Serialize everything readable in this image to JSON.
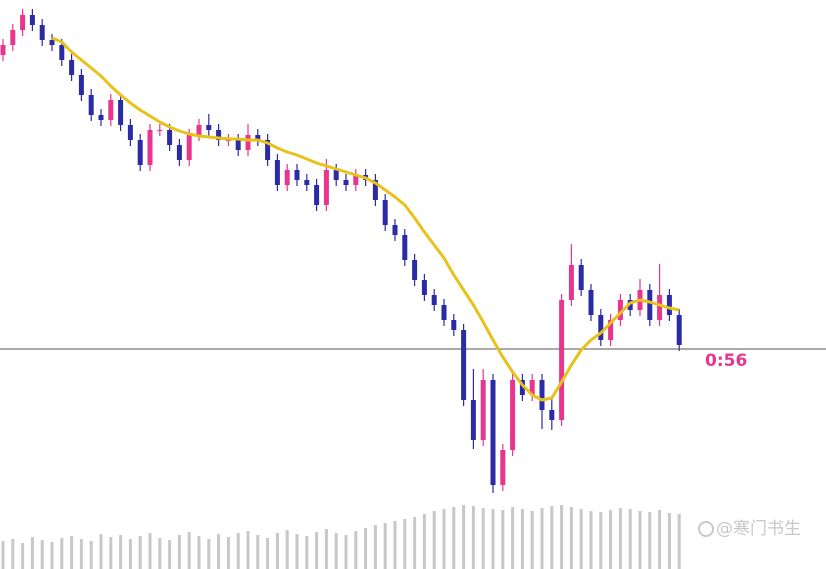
{
  "chart_data": {
    "type": "candlestick",
    "countdown": "0:56",
    "watermark": "@寒门书生",
    "ylim": [
      0,
      569
    ],
    "y2lim": [
      0,
      100
    ],
    "price_line": 220,
    "up_color": "#e8358e",
    "down_color": "#2b2ba5",
    "ma_color": "#e8c21a",
    "volume_color": "#c8c8c8",
    "open": [
      514,
      524,
      539,
      554,
      544,
      529,
      524,
      509,
      494,
      474,
      454,
      449,
      469,
      444,
      429,
      404,
      439,
      439,
      424,
      409,
      434,
      444,
      439,
      429,
      429,
      419,
      434,
      429,
      409,
      384,
      399,
      389,
      384,
      364,
      399,
      389,
      384,
      394,
      389,
      369,
      344,
      334,
      309,
      289,
      274,
      264,
      249,
      239,
      169,
      129,
      189,
      84,
      119,
      189,
      174,
      189,
      159,
      149,
      269,
      304,
      279,
      254,
      229,
      249,
      269,
      259,
      279,
      249,
      274,
      254
    ],
    "high": [
      530,
      545,
      560,
      560,
      550,
      535,
      530,
      515,
      500,
      480,
      460,
      475,
      475,
      450,
      435,
      445,
      445,
      445,
      430,
      440,
      450,
      455,
      445,
      435,
      435,
      445,
      440,
      435,
      415,
      405,
      405,
      395,
      390,
      410,
      405,
      395,
      400,
      400,
      395,
      375,
      350,
      340,
      315,
      295,
      280,
      270,
      255,
      245,
      200,
      200,
      195,
      125,
      199,
      195,
      195,
      195,
      170,
      275,
      325,
      310,
      285,
      260,
      255,
      275,
      275,
      290,
      285,
      305,
      280,
      260
    ],
    "low": [
      508,
      518,
      533,
      538,
      523,
      518,
      503,
      488,
      468,
      448,
      443,
      443,
      438,
      423,
      398,
      398,
      433,
      418,
      403,
      403,
      428,
      433,
      423,
      423,
      413,
      413,
      423,
      403,
      378,
      378,
      383,
      378,
      358,
      358,
      383,
      378,
      378,
      383,
      363,
      338,
      328,
      303,
      283,
      268,
      258,
      243,
      233,
      163,
      120,
      123,
      76,
      78,
      113,
      168,
      168,
      140,
      139,
      143,
      263,
      273,
      248,
      223,
      223,
      243,
      253,
      253,
      243,
      243,
      248,
      218
    ],
    "close": [
      524,
      539,
      554,
      544,
      529,
      524,
      509,
      494,
      474,
      454,
      449,
      469,
      444,
      429,
      404,
      439,
      439,
      424,
      409,
      434,
      444,
      439,
      429,
      429,
      419,
      434,
      429,
      409,
      384,
      399,
      389,
      384,
      364,
      399,
      389,
      384,
      394,
      389,
      369,
      344,
      334,
      309,
      289,
      274,
      264,
      249,
      239,
      169,
      129,
      189,
      84,
      119,
      189,
      174,
      189,
      159,
      149,
      269,
      304,
      279,
      254,
      229,
      249,
      269,
      259,
      279,
      249,
      274,
      254,
      224
    ],
    "ma": [
      null,
      null,
      null,
      null,
      null,
      531,
      527,
      517,
      509,
      501,
      493,
      483,
      474,
      466,
      459,
      453,
      447,
      442,
      438,
      435,
      433,
      432,
      431,
      430,
      430,
      429,
      429,
      426,
      421,
      417,
      414,
      410,
      406,
      403,
      400,
      397,
      394,
      391,
      386,
      379,
      372,
      364,
      351,
      337,
      324,
      311,
      294,
      279,
      264,
      247,
      229,
      212,
      197,
      184,
      174,
      169,
      171,
      187,
      204,
      219,
      229,
      236,
      246,
      256,
      266,
      269,
      267,
      264,
      261,
      259
    ],
    "volume": [
      28,
      30,
      26,
      32,
      29,
      27,
      31,
      33,
      30,
      28,
      35,
      32,
      34,
      30,
      33,
      36,
      31,
      29,
      34,
      37,
      33,
      30,
      35,
      32,
      36,
      38,
      34,
      31,
      36,
      39,
      35,
      33,
      37,
      40,
      36,
      34,
      38,
      41,
      44,
      46,
      48,
      50,
      52,
      55,
      58,
      60,
      62,
      64,
      63,
      61,
      60,
      59,
      62,
      60,
      58,
      61,
      63,
      64,
      62,
      60,
      58,
      57,
      59,
      61,
      60,
      58,
      57,
      59,
      56,
      55
    ]
  }
}
